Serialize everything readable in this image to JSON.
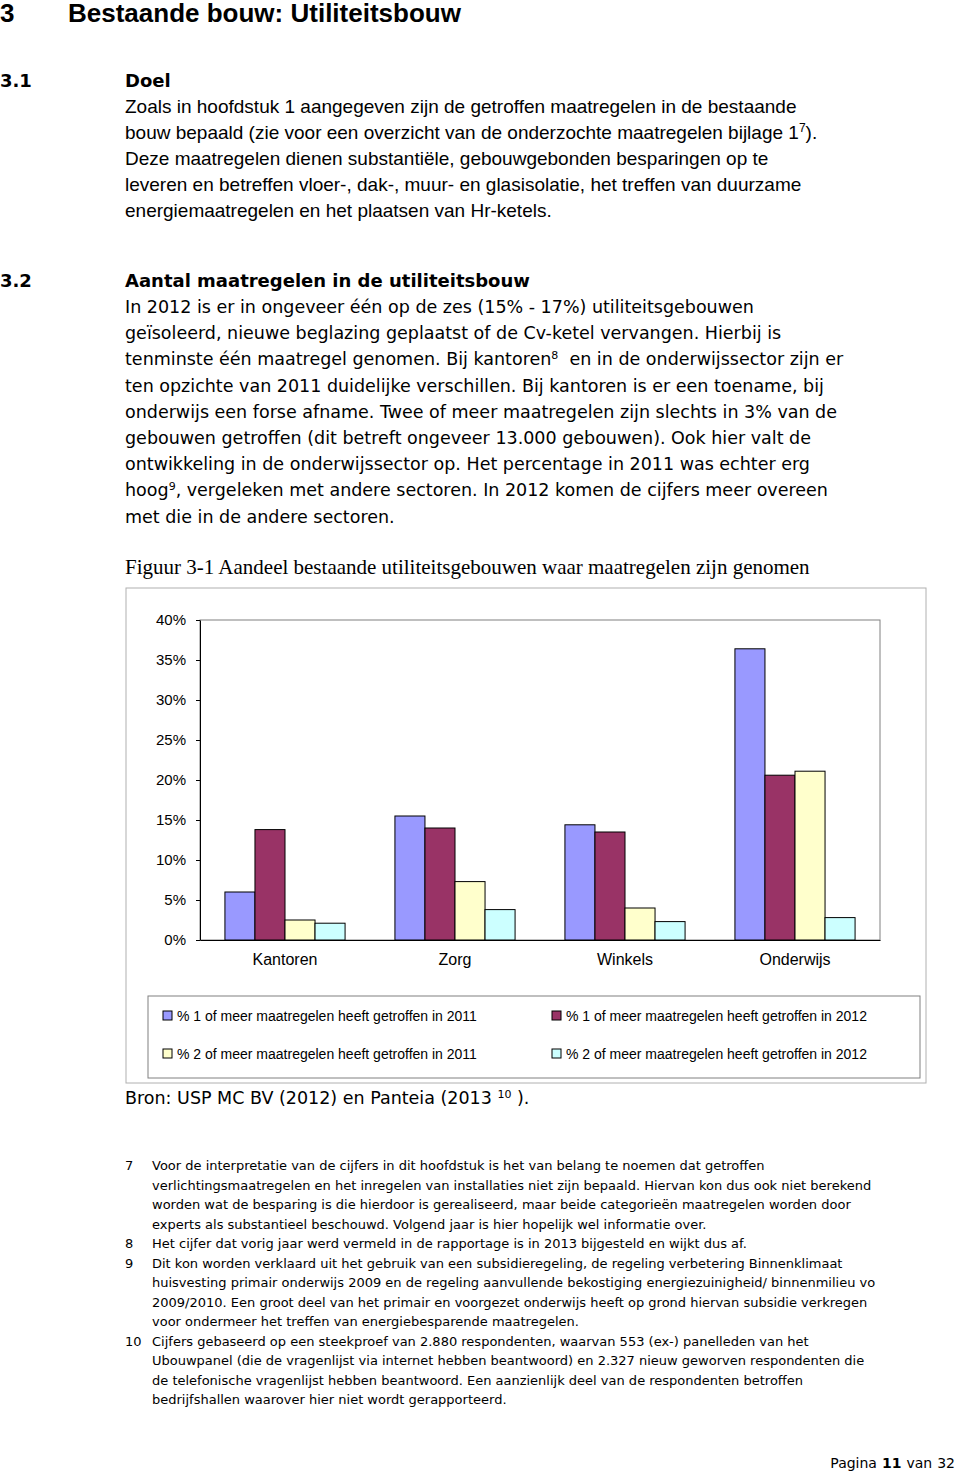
{
  "document": {
    "heading": {
      "number": "3",
      "title": "Bestaande bouw: Utiliteitsbouw"
    },
    "sections": [
      {
        "number": "3.1",
        "title": "Doel",
        "lines": [
          [
            "Zoals in hoofdstuk 1 aangegeven zijn de getroffen maatregelen in de bestaande"
          ],
          [
            "bouw bepaald (zie voor een overzicht van de onderzochte maatregelen bijlage 1",
            {
              "sup": "7"
            },
            ")."
          ],
          [
            "Deze maatregelen dienen substantiële, gebouwgebonden besparingen op te"
          ],
          [
            "leveren en betreffen vloer-, dak-, muur- en glasisolatie, het treffen van duurzame"
          ],
          [
            "energiemaatregelen en het plaatsen van Hr-ketels."
          ]
        ]
      },
      {
        "number": "3.2",
        "title": "Aantal maatregelen in de utiliteitsbouw",
        "lines": [
          [
            "In 2012 is er in ongeveer één op de zes (15% - 17%) utiliteitsgebouwen"
          ],
          [
            "geïsoleerd, nieuwe beglazing geplaatst of de Cv-ketel vervangen. Hierbij is"
          ],
          [
            "tenminste één maatregel genomen. Bij kantoren",
            {
              "sup": "8"
            },
            "  en in de onderwijssector zijn er"
          ],
          [
            "ten opzichte van 2011 duidelijke verschillen. Bij kantoren is er een toename, bij"
          ],
          [
            "onderwijs een forse afname. Twee of meer maatregelen zijn slechts in 3% van de"
          ],
          [
            "gebouwen getroffen (dit betreft ongeveer 13.000 gebouwen). Ook hier valt de"
          ],
          [
            "ontwikkeling in de onderwijssector op. Het percentage in 2011 was echter erg"
          ],
          [
            "hoog",
            {
              "sup": "9"
            },
            ", vergeleken met andere sectoren. In 2012 komen de cijfers meer overeen"
          ],
          [
            "met die in de andere sectoren."
          ]
        ]
      }
    ],
    "figure_caption": "Figuur 3-1 Aandeel bestaande utiliteitsgebouwen waar maatregelen zijn genomen",
    "source": [
      "Bron: USP MC BV (2012) en Panteia (2013 ",
      {
        "sup": "10"
      },
      " )."
    ],
    "footnotes": [
      {
        "number": "7",
        "lines": [
          "Voor de interpretatie van de cijfers in dit hoofdstuk is het van belang te noemen dat getroffen",
          "verlichtingsmaatregelen en het inregelen van installaties niet zijn bepaald. Hiervan kon dus ook niet berekend",
          "worden wat de besparing is die hierdoor is gerealiseerd, maar beide categorieën maatregelen worden door",
          "experts als substantieel beschouwd. Volgend jaar is hier hopelijk wel informatie over."
        ]
      },
      {
        "number": "8",
        "lines": [
          "Het cijfer dat vorig jaar werd vermeld in de rapportage is in 2013 bijgesteld en wijkt dus af."
        ]
      },
      {
        "number": "9",
        "lines": [
          "Dit kon worden verklaard uit het gebruik van een subsidieregeling, de regeling verbetering Binnenklimaat",
          "huisvesting primair onderwijs 2009 en de regeling aanvullende bekostiging energiezuinigheid/ binnenmilieu vo",
          "2009/2010. Een groot deel van het primair en voorgezet onderwijs heeft op grond hiervan subsidie verkregen",
          "voor ondermeer het treffen van energiebesparende maatregelen."
        ]
      },
      {
        "number": "10",
        "lines": [
          "Cijfers gebaseerd op een steekproef van 2.880 respondenten, waarvan 553 (ex-) panelleden van het",
          "Ubouwpanel (die de vragenlijst via internet hebben beantwoord) en 2.327 nieuw geworven respondenten die",
          "de telefonische vragenlijst hebben beantwoord. Een aanzienlijk deel van de respondenten betroffen",
          "bedrijfshallen waarover hier niet wordt gerapporteerd."
        ]
      }
    ],
    "page": {
      "prefix": "Pagina",
      "number": "11",
      "middle": "van",
      "total": "32"
    }
  },
  "chart_data": {
    "type": "bar",
    "categories": [
      "Kantoren",
      "Zorg",
      "Winkels",
      "Onderwijs"
    ],
    "series": [
      {
        "name": "% 1 of meer maatregelen heeft getroffen in 2011",
        "color": "#9999ff",
        "values": [
          6,
          15.5,
          14.4,
          36.4
        ]
      },
      {
        "name": "% 1 of meer maatregelen heeft getroffen in 2012",
        "color": "#993366",
        "values": [
          13.8,
          14,
          13.5,
          20.6
        ]
      },
      {
        "name": "% 2 of meer maatregelen heeft getroffen in 2011",
        "color": "#ffffcc",
        "values": [
          2.5,
          7.3,
          4,
          21.1
        ]
      },
      {
        "name": "% 2 of meer maatregelen heeft getroffen in 2012",
        "color": "#ccffff",
        "values": [
          2.1,
          3.8,
          2.3,
          2.8
        ]
      }
    ],
    "ylim": [
      0,
      40
    ],
    "yticks": [
      {
        "value": 0,
        "label": "0%"
      },
      {
        "value": 5,
        "label": "5%"
      },
      {
        "value": 10,
        "label": "10%"
      },
      {
        "value": 15,
        "label": "15%"
      },
      {
        "value": 20,
        "label": "20%"
      },
      {
        "value": 25,
        "label": "25%"
      },
      {
        "value": 30,
        "label": "30%"
      },
      {
        "value": 35,
        "label": "35%"
      },
      {
        "value": 40,
        "label": "40%"
      }
    ],
    "grid": false,
    "legend": "bottom"
  }
}
